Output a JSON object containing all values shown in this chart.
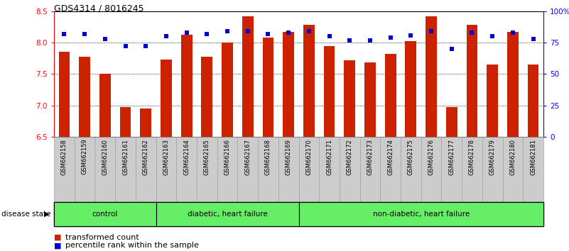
{
  "title": "GDS4314 / 8016245",
  "samples": [
    "GSM662158",
    "GSM662159",
    "GSM662160",
    "GSM662161",
    "GSM662162",
    "GSM662163",
    "GSM662164",
    "GSM662165",
    "GSM662166",
    "GSM662167",
    "GSM662168",
    "GSM662169",
    "GSM662170",
    "GSM662171",
    "GSM662172",
    "GSM662173",
    "GSM662174",
    "GSM662175",
    "GSM662176",
    "GSM662177",
    "GSM662178",
    "GSM662179",
    "GSM662180",
    "GSM662181"
  ],
  "bar_values": [
    7.85,
    7.78,
    7.5,
    6.97,
    6.95,
    7.73,
    8.13,
    7.78,
    8.0,
    8.42,
    8.08,
    8.17,
    8.28,
    7.95,
    7.72,
    7.69,
    7.82,
    8.02,
    8.42,
    6.97,
    8.28,
    7.65,
    8.17,
    7.65
  ],
  "percentile_values": [
    82,
    82,
    78,
    72,
    72,
    80,
    83,
    82,
    84,
    84,
    82,
    83,
    84,
    80,
    77,
    77,
    79,
    81,
    84,
    70,
    83,
    80,
    83,
    78
  ],
  "ylim_left": [
    6.5,
    8.5
  ],
  "ylim_right": [
    0,
    100
  ],
  "yticks_left": [
    6.5,
    7.0,
    7.5,
    8.0,
    8.5
  ],
  "yticks_right": [
    0,
    25,
    50,
    75,
    100
  ],
  "ytick_labels_right": [
    "0",
    "25",
    "50",
    "75",
    "100%"
  ],
  "bar_color": "#CC2200",
  "dot_color": "#0000CC",
  "bar_width": 0.55,
  "dotted_lines": [
    7.0,
    7.5,
    8.0
  ],
  "group_labels": [
    "control",
    "diabetic, heart failure",
    "non-diabetic, heart failure"
  ],
  "group_starts": [
    0,
    5,
    12
  ],
  "group_ends": [
    5,
    12,
    24
  ],
  "group_color": "#66EE66",
  "xtick_bg": "#CCCCCC",
  "legend_items": [
    {
      "label": "transformed count",
      "color": "#CC2200"
    },
    {
      "label": "percentile rank within the sample",
      "color": "#0000CC"
    }
  ]
}
